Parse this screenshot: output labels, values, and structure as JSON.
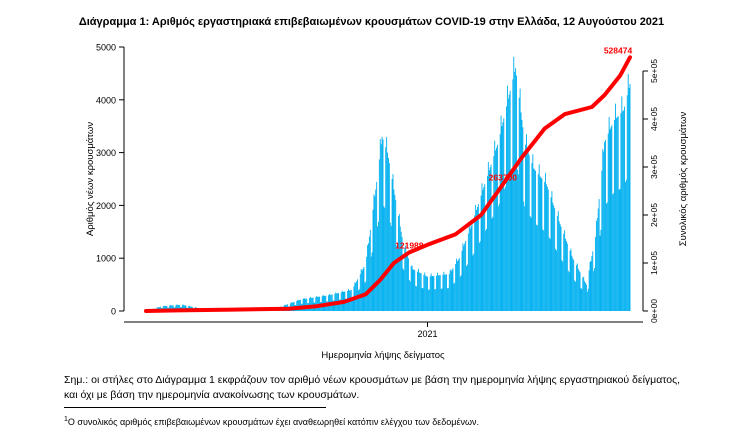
{
  "chart_data": {
    "type": "bar",
    "title": "Διάγραμμα 1: Αριθμός εργαστηριακά επιβεβαιωμένων κρουσμάτων COVID-19 στην Ελλάδα, 12 Αυγούστου 2021",
    "xlabel": "Ημερομηνία λήψης δείγματος",
    "ylabel": "Αριθμός νέων κρουσμάτων",
    "y2label": "Συνολικός αριθμός κρουσμάτων",
    "x_tick_labels": [
      "2021"
    ],
    "x_range": [
      "2020-02-26",
      "2021-08-12"
    ],
    "ylim": [
      0,
      5000
    ],
    "y_ticks": [
      0,
      1000,
      2000,
      3000,
      4000,
      5000
    ],
    "y2lim": [
      0,
      550000
    ],
    "y2_ticks": [
      "0e+00",
      "1e+05",
      "2e+05",
      "3e+05",
      "4e+05",
      "5e+05"
    ],
    "bar_color": "#00b0f0",
    "line_color": "#ff0000",
    "bar_series": {
      "name": "Αριθμός νέων κρουσμάτων",
      "knots": [
        [
          "2020-02-26",
          3
        ],
        [
          "2020-03-15",
          90
        ],
        [
          "2020-04-05",
          120
        ],
        [
          "2020-05-01",
          30
        ],
        [
          "2020-06-15",
          20
        ],
        [
          "2020-07-20",
          60
        ],
        [
          "2020-08-15",
          220
        ],
        [
          "2020-09-15",
          300
        ],
        [
          "2020-10-10",
          400
        ],
        [
          "2020-10-25",
          900
        ],
        [
          "2020-11-05",
          2300
        ],
        [
          "2020-11-12",
          3300
        ],
        [
          "2020-11-18",
          3000
        ],
        [
          "2020-11-26",
          2200
        ],
        [
          "2020-12-05",
          1300
        ],
        [
          "2020-12-15",
          800
        ],
        [
          "2021-01-01",
          650
        ],
        [
          "2021-01-25",
          700
        ],
        [
          "2021-02-05",
          1000
        ],
        [
          "2021-02-20",
          1700
        ],
        [
          "2021-03-05",
          2400
        ],
        [
          "2021-03-20",
          3200
        ],
        [
          "2021-04-01",
          4100
        ],
        [
          "2021-04-08",
          4600
        ],
        [
          "2021-04-18",
          3200
        ],
        [
          "2021-04-28",
          2700
        ],
        [
          "2021-05-12",
          2400
        ],
        [
          "2021-05-28",
          1600
        ],
        [
          "2021-06-10",
          1000
        ],
        [
          "2021-06-25",
          500
        ],
        [
          "2021-07-05",
          1400
        ],
        [
          "2021-07-15",
          3200
        ],
        [
          "2021-07-25",
          3600
        ],
        [
          "2021-08-05",
          3800
        ],
        [
          "2021-08-12",
          4300
        ]
      ]
    },
    "line_series": {
      "name": "Συνολικός αριθμός κρουσμάτων",
      "points": [
        [
          "2020-02-26",
          0
        ],
        [
          "2020-04-01",
          1300
        ],
        [
          "2020-06-01",
          3000
        ],
        [
          "2020-08-01",
          4500
        ],
        [
          "2020-09-01",
          10000
        ],
        [
          "2020-10-01",
          19000
        ],
        [
          "2020-10-25",
          35000
        ],
        [
          "2020-11-10",
          65000
        ],
        [
          "2020-11-25",
          100000
        ],
        [
          "2020-12-12",
          121988
        ],
        [
          "2021-01-01",
          138000
        ],
        [
          "2021-02-01",
          160000
        ],
        [
          "2021-03-01",
          200000
        ],
        [
          "2021-03-25",
          263700
        ],
        [
          "2021-04-15",
          320000
        ],
        [
          "2021-05-10",
          380000
        ],
        [
          "2021-06-01",
          410000
        ],
        [
          "2021-07-01",
          425000
        ],
        [
          "2021-07-15",
          450000
        ],
        [
          "2021-08-01",
          490000
        ],
        [
          "2021-08-12",
          528474
        ]
      ]
    },
    "annotations": [
      {
        "text": "121988",
        "x": "2020-12-12",
        "y2": 121988
      },
      {
        "text": "263700",
        "x": "2021-03-25",
        "y2": 263700
      },
      {
        "text": "528474",
        "x": "2021-08-12",
        "y2": 528474
      }
    ]
  },
  "note": "Σημ.: οι στήλες στο Διάγραμμα 1 εκφράζουν τον αριθμό νέων κρουσμάτων με βάση την ημερομηνία λήψης εργαστηριακού δείγματος, και όχι με βάση την ημερομηνία ανακοίνωσης των κρουσμάτων.",
  "footnote_mark": "1",
  "footnote": "Ο συνολικός αριθμός επιβεβαιωμένων κρουσμάτων έχει αναθεωρηθεί κατόπιν ελέγχου των δεδομένων."
}
